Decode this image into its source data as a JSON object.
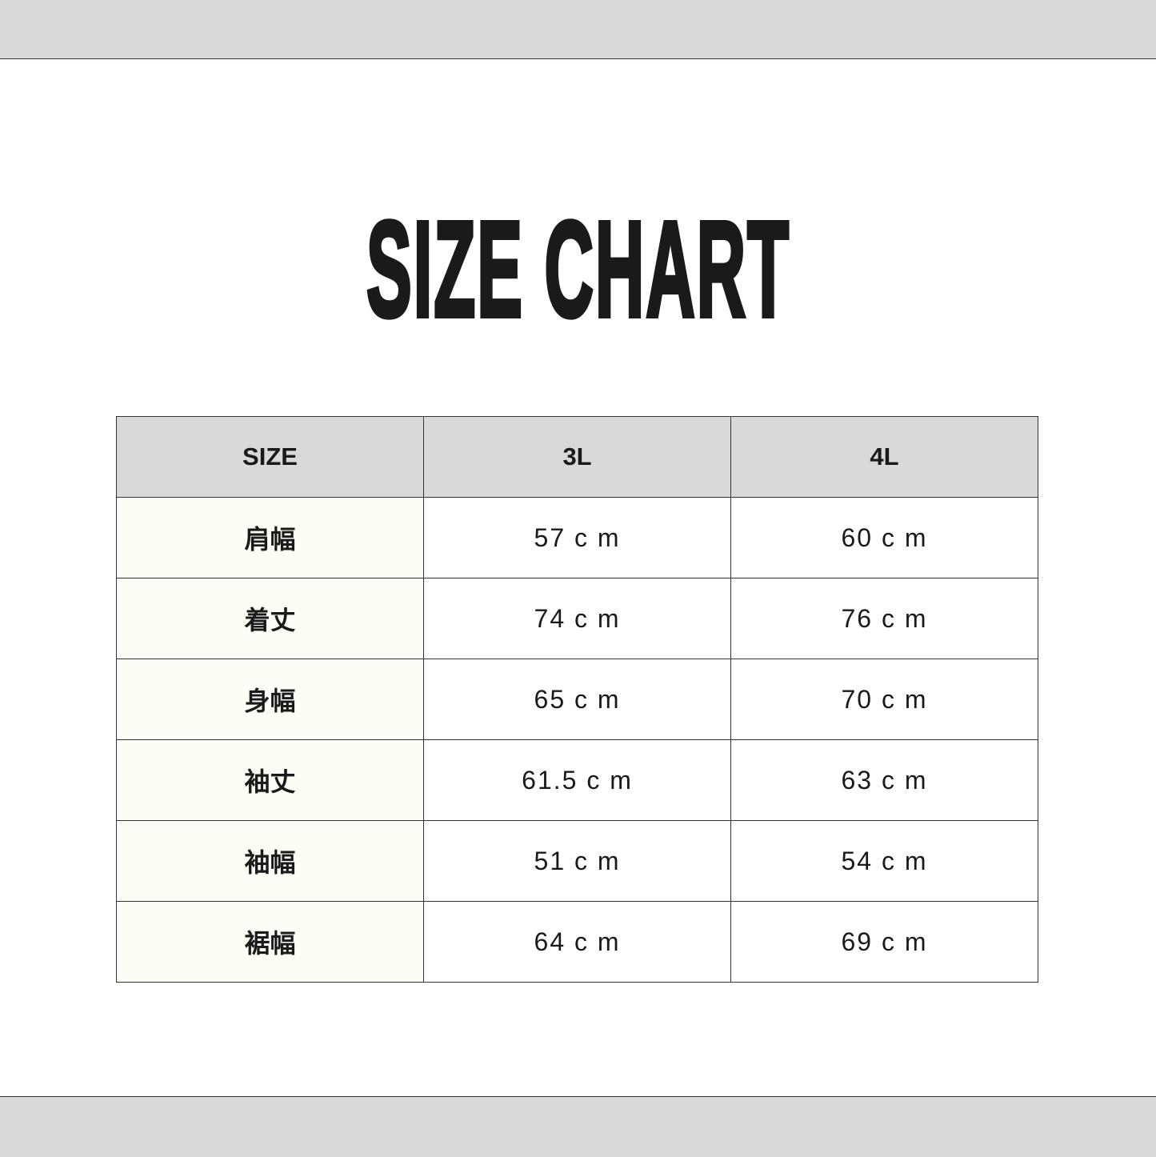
{
  "title": "SIZE CHART",
  "colors": {
    "header_bg": "#d9d9d9",
    "label_bg": "#fdfdf5",
    "text": "#1a1a1a"
  },
  "table": {
    "headers": [
      "SIZE",
      "3L",
      "4L"
    ],
    "rows": [
      [
        "肩幅",
        "57 c m",
        "60 c m"
      ],
      [
        "着丈",
        "74 c m",
        "76 c m"
      ],
      [
        "身幅",
        "65 c m",
        "70 c m"
      ],
      [
        "袖丈",
        "61.5 c m",
        "63 c m"
      ],
      [
        "袖幅",
        "51 c m",
        "54 c m"
      ],
      [
        "裾幅",
        "64 c m",
        "69 c m"
      ]
    ]
  }
}
